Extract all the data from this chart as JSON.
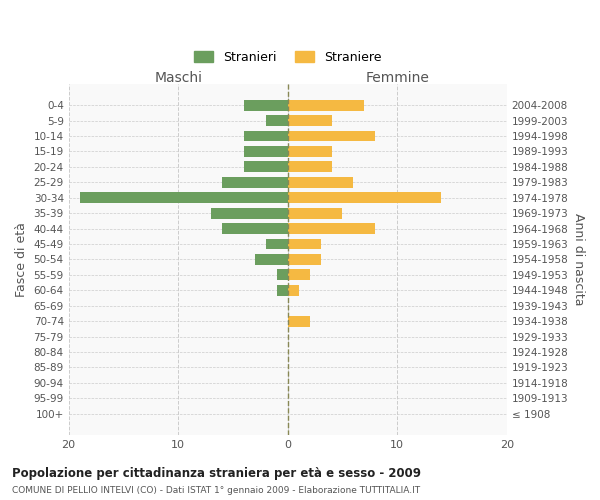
{
  "age_groups": [
    "100+",
    "95-99",
    "90-94",
    "85-89",
    "80-84",
    "75-79",
    "70-74",
    "65-69",
    "60-64",
    "55-59",
    "50-54",
    "45-49",
    "40-44",
    "35-39",
    "30-34",
    "25-29",
    "20-24",
    "15-19",
    "10-14",
    "5-9",
    "0-4"
  ],
  "birth_years": [
    "≤ 1908",
    "1909-1913",
    "1914-1918",
    "1919-1923",
    "1924-1928",
    "1929-1933",
    "1934-1938",
    "1939-1943",
    "1944-1948",
    "1949-1953",
    "1954-1958",
    "1959-1963",
    "1964-1968",
    "1969-1973",
    "1974-1978",
    "1979-1983",
    "1984-1988",
    "1989-1993",
    "1994-1998",
    "1999-2003",
    "2004-2008"
  ],
  "maschi": [
    0,
    0,
    0,
    0,
    0,
    0,
    0,
    0,
    1,
    1,
    3,
    2,
    6,
    7,
    19,
    6,
    4,
    4,
    4,
    2,
    4
  ],
  "femmine": [
    0,
    0,
    0,
    0,
    0,
    0,
    2,
    0,
    1,
    2,
    3,
    3,
    8,
    5,
    14,
    6,
    4,
    4,
    8,
    4,
    7
  ],
  "color_maschi": "#6b9e5e",
  "color_femmine": "#f5b942",
  "background_color": "#ffffff",
  "grid_color": "#cccccc",
  "title": "Popolazione per cittadinanza straniera per età e sesso - 2009",
  "subtitle": "COMUNE DI PELLIO INTELVI (CO) - Dati ISTAT 1° gennaio 2009 - Elaborazione TUTTITALIA.IT",
  "ylabel_left": "Fasce di età",
  "ylabel_right": "Anni di nascita",
  "xlabel_left": "Maschi",
  "xlabel_right": "Femmine",
  "legend_maschi": "Stranieri",
  "legend_femmine": "Straniere",
  "xlim": 20,
  "xticks": [
    20,
    10,
    0,
    10,
    20
  ]
}
